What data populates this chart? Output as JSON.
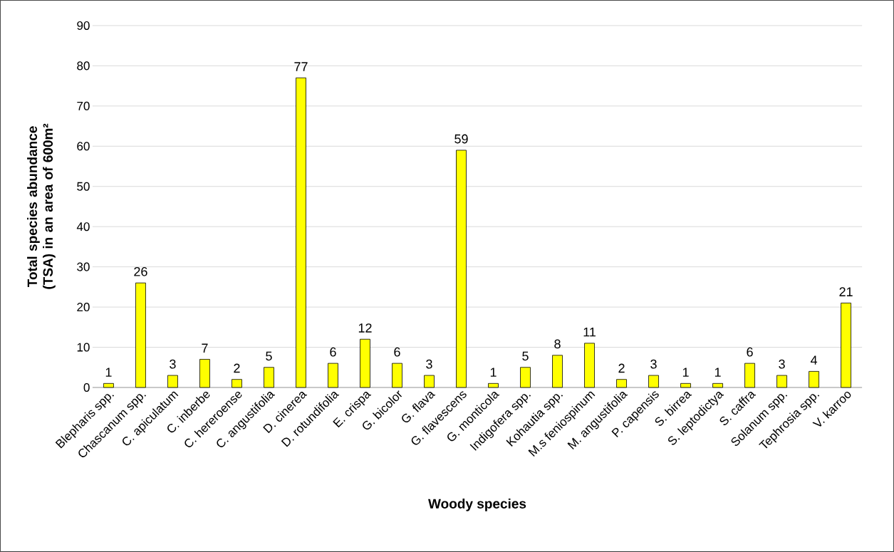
{
  "chart_data": {
    "type": "bar",
    "xlabel": "Woody species",
    "ylabel": "Total species abundance (TSA) in an area of 600m²",
    "categories": [
      "Blepharis spp.",
      "Chascanum spp.",
      "C. apiculatum",
      "C. inberbe",
      "C. hereroense",
      "C. angustifolia",
      "D. cinerea",
      "D. rotundifolia",
      "E. crispa",
      "G. bicolor",
      "G. flava",
      "G. flavescens",
      "G. monticola",
      "Indigofera spp.",
      "Kohautia spp.",
      "M.s feniospinum",
      "M. angustifolia",
      "P. capensis",
      "S. birrea",
      "S. leptodictya",
      "S. caffra",
      "Solanum spp.",
      "Tephrosia spp.",
      "V. karroo"
    ],
    "values": [
      1,
      26,
      3,
      7,
      2,
      5,
      77,
      6,
      12,
      6,
      3,
      59,
      1,
      5,
      8,
      11,
      2,
      3,
      1,
      1,
      6,
      3,
      4,
      21
    ],
    "color": "#ffff00",
    "ylim": [
      0,
      90
    ],
    "yticks": [
      0,
      10,
      20,
      30,
      40,
      50,
      60,
      70,
      80,
      90
    ],
    "grid": "y",
    "data_labels": true
  }
}
